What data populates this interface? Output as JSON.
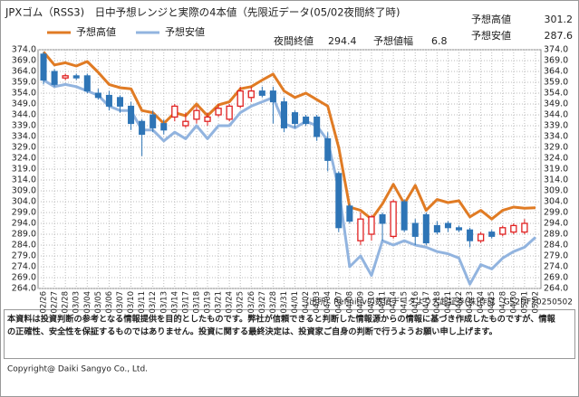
{
  "chart_data": {
    "type": "candlestick",
    "title": "JPXゴム（RSS3)　日中予想レンジと実際の4本値（先限近データ(05/02夜間終了時)",
    "categories": [
      "02/26",
      "02/27",
      "02/28",
      "03/03",
      "03/04",
      "03/05",
      "03/06",
      "03/07",
      "03/10",
      "03/11",
      "03/12",
      "03/13",
      "03/14",
      "03/17",
      "03/18",
      "03/19",
      "03/21",
      "03/24",
      "03/25",
      "03/26",
      "03/27",
      "03/28",
      "03/31",
      "04/01",
      "04/02",
      "04/03",
      "04/04",
      "04/07",
      "04/08",
      "04/09",
      "04/10",
      "04/11",
      "04/14",
      "04/15",
      "04/16",
      "04/17",
      "04/18",
      "04/21",
      "04/22",
      "04/23",
      "04/24",
      "04/25",
      "04/28",
      "04/30",
      "05/01",
      "05/02"
    ],
    "open": [
      372,
      364,
      361,
      362,
      362,
      354,
      353,
      352,
      348,
      341,
      344,
      340,
      343,
      339,
      342,
      341,
      344,
      342,
      348,
      352,
      355,
      355,
      350,
      345,
      343,
      343,
      333,
      317,
      302,
      286,
      289,
      298,
      288,
      304,
      294,
      298,
      293,
      294,
      292,
      291,
      286,
      290,
      289,
      290,
      290,
      null
    ],
    "high": [
      373,
      365,
      363,
      363,
      363,
      356,
      355,
      353,
      350,
      342,
      346,
      342,
      349,
      345,
      348,
      345,
      349,
      349,
      357,
      357,
      357,
      357,
      352,
      346,
      344,
      344,
      336,
      318,
      303,
      299,
      298,
      299,
      305,
      305,
      296,
      299,
      295,
      295,
      293,
      292,
      290,
      291,
      293,
      294,
      296,
      null
    ],
    "low": [
      358,
      357,
      360,
      360,
      354,
      351,
      346,
      345,
      337,
      325,
      336,
      335,
      341,
      338,
      340,
      339,
      343,
      341,
      347,
      350,
      352,
      340,
      336,
      338,
      339,
      332,
      318,
      290,
      294,
      284,
      286,
      286,
      287,
      290,
      284,
      284,
      289,
      290,
      290,
      283,
      285,
      287,
      288,
      289,
      289,
      null
    ],
    "close": [
      360,
      358,
      362,
      361,
      355,
      352,
      348,
      348,
      340,
      335,
      338,
      337,
      348,
      341,
      346,
      343,
      347,
      348,
      355,
      355,
      353,
      350,
      338,
      340,
      340,
      334,
      323,
      292,
      295,
      296,
      297,
      294,
      304,
      291,
      288,
      285,
      290,
      292,
      291,
      286,
      289,
      288,
      292,
      293,
      294,
      null
    ],
    "up_color": "#e02020",
    "down_color": "#2e75b6",
    "series": [
      {
        "name": "予想高値",
        "color": "#e07b24",
        "values": [
          373,
          367,
          368,
          366.5,
          368.6,
          363.6,
          358,
          356.5,
          356,
          346,
          345,
          340,
          345,
          343.6,
          349,
          343.6,
          348.6,
          350,
          356,
          357,
          360,
          362.8,
          355,
          352,
          354,
          351,
          348,
          329,
          301.5,
          300,
          296,
          303,
          312,
          303,
          311.5,
          300,
          305,
          303.6,
          304.4,
          297,
          300,
          296,
          300,
          301.5,
          301,
          301.2
        ]
      },
      {
        "name": "予想安値",
        "color": "#92b4df",
        "values": [
          360,
          357,
          358,
          357,
          355,
          353,
          348,
          346,
          346,
          337,
          337,
          332,
          336,
          333,
          339,
          333,
          339,
          339,
          345,
          348,
          350,
          352,
          340,
          338,
          341,
          339,
          332,
          310,
          274,
          279,
          270,
          286,
          284,
          286,
          284,
          283,
          281,
          280,
          278,
          266,
          275,
          273,
          278,
          281,
          283,
          287.6
        ]
      }
    ],
    "ylim": [
      264,
      374
    ],
    "yticks": [
      {
        "value": 374,
        "label": "374.0"
      },
      {
        "value": 369,
        "label": "369.0"
      },
      {
        "value": 364,
        "label": "364.0"
      },
      {
        "value": 359,
        "label": "359.0"
      },
      {
        "value": 354,
        "label": "354.0"
      },
      {
        "value": 349,
        "label": "349.0"
      },
      {
        "value": 344,
        "label": "344.0"
      },
      {
        "value": 339,
        "label": "339.0"
      },
      {
        "value": 334,
        "label": "334.0"
      },
      {
        "value": 329,
        "label": "329.0"
      },
      {
        "value": 324,
        "label": "324.0"
      },
      {
        "value": 319,
        "label": "319.0"
      },
      {
        "value": 314,
        "label": "314.0"
      },
      {
        "value": 309,
        "label": "309.0"
      },
      {
        "value": 304,
        "label": "304.0"
      },
      {
        "value": 299,
        "label": "299.0"
      },
      {
        "value": 294,
        "label": "294.0"
      },
      {
        "value": 289,
        "label": "289.0"
      },
      {
        "value": 284,
        "label": "284.0"
      },
      {
        "value": 279,
        "label": "279.0"
      },
      {
        "value": 274,
        "label": "274.0"
      },
      {
        "value": 269,
        "label": "269.0"
      },
      {
        "value": 264,
        "label": "264.0"
      }
    ],
    "grid": true,
    "legend": "top-left"
  },
  "summary": {
    "high": {
      "label": "予想高値",
      "value": 301.2
    },
    "low": {
      "label": "予想安値",
      "value": 287.6
    },
    "close": {
      "label": "夜間終値",
      "value": 294.4
    },
    "range": {
      "label": "予想値幅",
      "value": 6.8
    }
  },
  "source": "（出所）Refinitivの数値データより大起証券(株)作成　GS2DF20250502",
  "notes": [
    "本資料は投資判断の参考となる情報提供を目的としたものです。弊社が信頼できると判断した情報源からの情報に基づき作成したものですが、情報",
    "の正確性、安全性を保証するものではありません。投資に関する最終決定は、投資家ご自身の判断で行うようお願い申し上げます。"
  ],
  "copyright": "Copyright@ Daiki Sangyo Co., Ltd."
}
